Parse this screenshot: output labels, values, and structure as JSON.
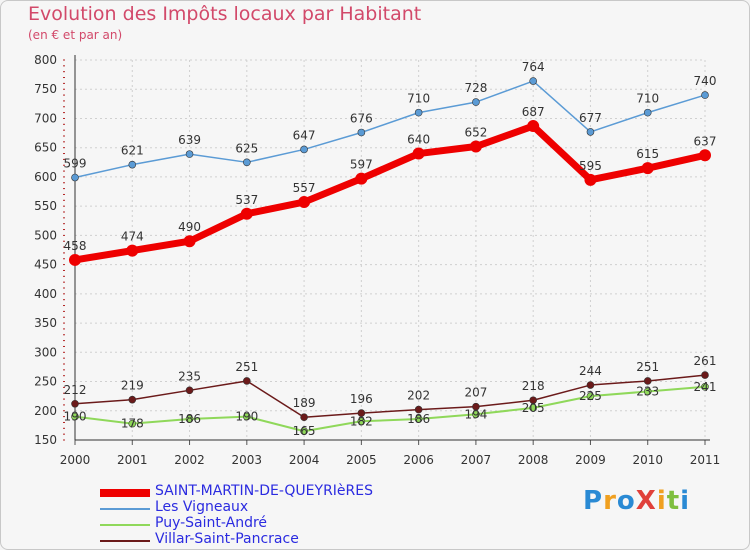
{
  "title": "Evolution des Impôts locaux par Habitant",
  "subtitle": "(en € et par an)",
  "logo_text": "ProXiti",
  "chart_data": {
    "type": "line",
    "x": [
      "2000",
      "2001",
      "2002",
      "2003",
      "2004",
      "2005",
      "2006",
      "2007",
      "2008",
      "2009",
      "2010",
      "2011"
    ],
    "ylim": [
      150,
      800
    ],
    "yticks": [
      150,
      200,
      250,
      300,
      350,
      400,
      450,
      500,
      550,
      600,
      650,
      700,
      750,
      800
    ],
    "grid": true,
    "legend_position": "bottom-left",
    "series": [
      {
        "name": "SAINT-MARTIN-DE-QUEYRIèRES",
        "color": "#ee0000",
        "values": [
          458,
          474,
          490,
          537,
          557,
          597,
          640,
          652,
          687,
          595,
          615,
          637
        ]
      },
      {
        "name": "Les Vigneaux",
        "color": "#5b9bd5",
        "values": [
          599,
          621,
          639,
          625,
          647,
          676,
          710,
          728,
          764,
          677,
          710,
          740
        ]
      },
      {
        "name": "Puy-Saint-André",
        "color": "#8fd85a",
        "values": [
          190,
          178,
          186,
          190,
          165,
          182,
          186,
          194,
          205,
          225,
          233,
          241
        ]
      },
      {
        "name": "Villar-Saint-Pancrace",
        "color": "#6b1a1a",
        "values": [
          212,
          219,
          235,
          251,
          189,
          196,
          202,
          207,
          218,
          244,
          251,
          261
        ]
      }
    ]
  }
}
